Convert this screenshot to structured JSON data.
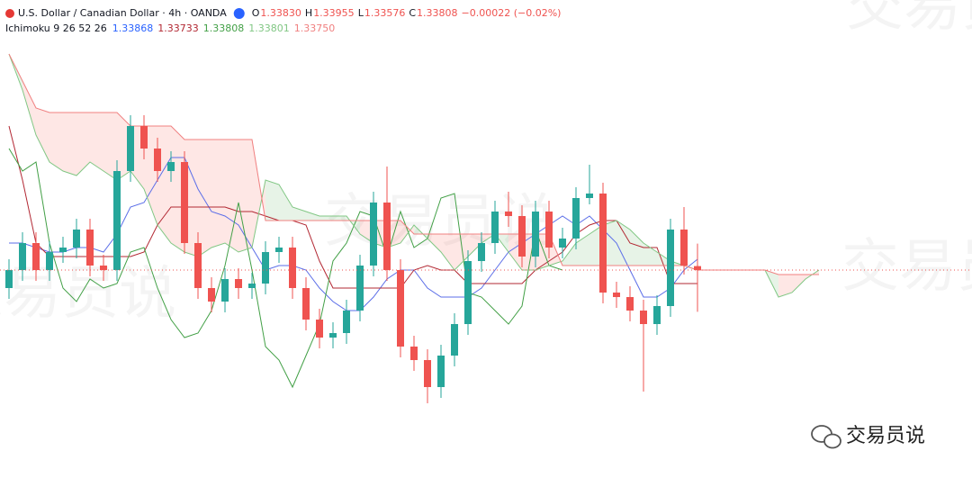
{
  "header": {
    "symbol": "U.S. Dollar / Canadian Dollar · 4h · OANDA",
    "ohlc": [
      {
        "key": "O",
        "value": "1.33830"
      },
      {
        "key": "H",
        "value": "1.33955"
      },
      {
        "key": "L",
        "value": "1.33576"
      },
      {
        "key": "C",
        "value": "1.33808"
      }
    ],
    "change": "−0.00022 (−0.02%)",
    "indicator": "Ichimoku 9 26 52 26",
    "indicator_values": [
      {
        "value": "1.33868",
        "color": "#2962ff"
      },
      {
        "value": "1.33733",
        "color": "#b22833"
      },
      {
        "value": "1.33808",
        "color": "#43a047"
      },
      {
        "value": "1.33801",
        "color": "#81c784"
      },
      {
        "value": "1.33750",
        "color": "#f08080"
      }
    ],
    "watermark": "交易员说"
  },
  "chart_data": {
    "type": "candlestick",
    "up_color": "#26a69a",
    "down_color": "#ef5350",
    "ylim": [
      1.32653,
      1.35308
    ],
    "open": [
      1.33708,
      1.33808,
      1.33958,
      1.33808,
      1.33908,
      1.33933,
      1.34033,
      1.33833,
      1.33808,
      1.34358,
      1.34608,
      1.34483,
      1.34358,
      1.34408,
      1.33958,
      1.33708,
      1.33633,
      1.33758,
      1.33708,
      1.33733,
      1.33908,
      1.33933,
      1.33708,
      1.33533,
      1.33433,
      1.33458,
      1.33583,
      1.33833,
      1.34183,
      1.33808,
      1.33383,
      1.33308,
      1.33158,
      1.33333,
      1.33508,
      1.33858,
      1.33958,
      1.34133,
      1.34108,
      1.33883,
      1.34133,
      1.33933,
      1.33983,
      1.34208,
      1.34233,
      1.33683,
      1.33658,
      1.33583,
      1.33508,
      1.33608,
      1.34033,
      1.3383,
      null,
      null,
      null,
      null,
      null,
      null,
      null,
      null,
      null
    ],
    "high": [
      1.33868,
      1.34018,
      1.34018,
      1.33968,
      1.33993,
      1.34093,
      1.34093,
      1.33893,
      1.34418,
      1.34668,
      1.34668,
      1.34543,
      1.34468,
      1.34468,
      1.34018,
      1.33768,
      1.33818,
      1.33818,
      1.33793,
      1.33968,
      1.33993,
      1.33993,
      1.33768,
      1.33593,
      1.33518,
      1.33643,
      1.33893,
      1.34243,
      1.34383,
      1.33868,
      1.33443,
      1.33368,
      1.33393,
      1.33568,
      1.33918,
      1.34018,
      1.34193,
      1.34243,
      1.34168,
      1.34193,
      1.34193,
      1.34043,
      1.34268,
      1.34393,
      1.34293,
      1.33743,
      1.33718,
      1.33643,
      1.33668,
      1.34093,
      1.34158,
      1.33955,
      null,
      null,
      null,
      null,
      null,
      null,
      null,
      null,
      null
    ],
    "low": [
      1.33648,
      1.33748,
      1.33748,
      1.33748,
      1.33848,
      1.33873,
      1.33773,
      1.33748,
      1.33748,
      1.34298,
      1.34423,
      1.34298,
      1.34298,
      1.33898,
      1.33648,
      1.33573,
      1.33573,
      1.33648,
      1.33648,
      1.33673,
      1.33848,
      1.33648,
      1.33473,
      1.33373,
      1.33373,
      1.33398,
      1.33523,
      1.33773,
      1.33748,
      1.33323,
      1.33248,
      1.33068,
      1.33098,
      1.33273,
      1.33448,
      1.33798,
      1.33898,
      1.34048,
      1.33823,
      1.33823,
      1.33873,
      1.33873,
      1.33923,
      1.34173,
      1.33623,
      1.33598,
      1.33523,
      1.33133,
      1.33448,
      1.33548,
      1.33783,
      1.33576,
      null,
      null,
      null,
      null,
      null,
      null,
      null,
      null,
      null
    ],
    "close": [
      1.33808,
      1.33958,
      1.33808,
      1.33908,
      1.33933,
      1.34033,
      1.33833,
      1.33808,
      1.34358,
      1.34608,
      1.34483,
      1.34358,
      1.34408,
      1.33958,
      1.33708,
      1.33633,
      1.33758,
      1.33708,
      1.33733,
      1.33908,
      1.33933,
      1.33708,
      1.33533,
      1.33433,
      1.33458,
      1.33583,
      1.33833,
      1.34183,
      1.33808,
      1.33383,
      1.33308,
      1.33158,
      1.33333,
      1.33508,
      1.33858,
      1.33958,
      1.34133,
      1.34108,
      1.33883,
      1.34133,
      1.33933,
      1.33983,
      1.34208,
      1.34233,
      1.33683,
      1.33658,
      1.33583,
      1.33508,
      1.33608,
      1.34033,
      1.33833,
      1.33808,
      null,
      null,
      null,
      null,
      null,
      null,
      null,
      null,
      null
    ],
    "series": [
      {
        "color": "#5b6ee8",
        "values": [
          1.33958,
          1.33958,
          1.33933,
          1.33908,
          1.33908,
          1.33933,
          1.33933,
          1.33908,
          1.34008,
          1.34158,
          1.34183,
          1.34308,
          1.34433,
          1.34433,
          1.34258,
          1.34133,
          1.34108,
          1.34058,
          1.33933,
          1.33808,
          1.33833,
          1.33833,
          1.33808,
          1.33708,
          1.33633,
          1.33583,
          1.33583,
          1.33658,
          1.33758,
          1.33808,
          1.33808,
          1.33708,
          1.33658,
          1.33658,
          1.33658,
          1.33708,
          1.33808,
          1.33908,
          1.33958,
          1.34008,
          1.34058,
          1.34108,
          1.34058,
          1.34108,
          1.34033,
          1.33958,
          1.33808,
          1.33658,
          1.33658,
          1.33708,
          1.33808,
          1.33868,
          null,
          null,
          null,
          null,
          null,
          null,
          null,
          null,
          null
        ]
      },
      {
        "color": "#b22833",
        "values": [
          1.34608,
          1.34308,
          1.33958,
          1.33883,
          1.33883,
          1.33883,
          1.33883,
          1.33883,
          1.33883,
          1.33883,
          1.33908,
          1.34058,
          1.34158,
          1.34158,
          1.34158,
          1.34158,
          1.34158,
          1.34133,
          1.34133,
          1.34108,
          1.34083,
          1.34083,
          1.34058,
          1.33858,
          1.33708,
          1.33708,
          1.33708,
          1.33708,
          1.33708,
          1.33708,
          1.33808,
          1.33833,
          1.33808,
          1.33808,
          1.33733,
          1.33733,
          1.33733,
          1.33733,
          1.33733,
          1.33808,
          1.33858,
          1.33908,
          1.34008,
          1.34058,
          1.34083,
          1.34083,
          1.33958,
          1.33933,
          1.33933,
          1.33733,
          1.33733,
          1.33733,
          null,
          null,
          null,
          null,
          null,
          null,
          null,
          null,
          null
        ]
      },
      {
        "color": "#43a047",
        "values": [
          1.34483,
          1.34358,
          1.34408,
          1.33958,
          1.33708,
          1.33633,
          1.33758,
          1.33708,
          1.33733,
          1.33908,
          1.33933,
          1.33708,
          1.33533,
          1.33433,
          1.33458,
          1.33583,
          1.33833,
          1.34183,
          1.33808,
          1.33383,
          1.33308,
          1.33158,
          1.33333,
          1.33508,
          1.33858,
          1.33958,
          1.34133,
          1.34108,
          1.33883,
          1.34133,
          1.33933,
          1.33983,
          1.34208,
          1.34233,
          1.33683,
          1.33658,
          1.33583,
          1.33508,
          1.33608,
          1.34033,
          1.33833,
          1.33808,
          null,
          null,
          null,
          null,
          null,
          null,
          null,
          null,
          null,
          null,
          null,
          null,
          null,
          null,
          null,
          null,
          null,
          null,
          null
        ]
      },
      {
        "color": "#81c784",
        "values": [
          1.35008,
          1.34808,
          1.34558,
          1.34408,
          1.34358,
          1.34333,
          1.34408,
          1.34358,
          1.34308,
          1.34358,
          1.34258,
          1.34058,
          1.33958,
          1.33908,
          1.33883,
          1.33933,
          1.33958,
          1.33908,
          1.33933,
          1.34308,
          1.34283,
          1.34158,
          1.34133,
          1.34108,
          1.34108,
          1.34108,
          1.34008,
          1.33958,
          1.33933,
          1.33958,
          1.34058,
          1.33983,
          1.33908,
          1.33808,
          1.33883,
          1.33958,
          1.34008,
          1.33908,
          1.33808,
          1.33808,
          1.33833,
          1.33858,
          1.33958,
          1.34008,
          1.34058,
          1.34083,
          1.34033,
          1.33958,
          1.33908,
          1.33858,
          1.33833,
          1.33808,
          1.33808,
          1.33808,
          1.33808,
          1.33808,
          1.33808,
          1.33658,
          1.33683,
          1.33758,
          1.33808
        ]
      },
      {
        "color": "#f08080",
        "values": [
          1.35008,
          1.34858,
          1.34708,
          1.34683,
          1.34683,
          1.34683,
          1.34683,
          1.34683,
          1.34683,
          1.34608,
          1.34608,
          1.34608,
          1.34608,
          1.34533,
          1.34533,
          1.34533,
          1.34533,
          1.34533,
          1.34533,
          1.34083,
          1.34083,
          1.34083,
          1.34083,
          1.34083,
          1.34083,
          1.34083,
          1.34083,
          1.34083,
          1.34083,
          1.34083,
          1.34008,
          1.34008,
          1.34008,
          1.34008,
          1.34008,
          1.34008,
          1.34008,
          1.34008,
          1.34008,
          1.34008,
          1.34008,
          1.33833,
          1.33833,
          1.33833,
          1.33833,
          1.33833,
          1.33833,
          1.33833,
          1.33833,
          1.33833,
          1.33833,
          1.33808,
          1.33808,
          1.33808,
          1.33808,
          1.33808,
          1.33808,
          1.33783,
          1.33783,
          1.33783,
          1.33783
        ]
      }
    ]
  }
}
